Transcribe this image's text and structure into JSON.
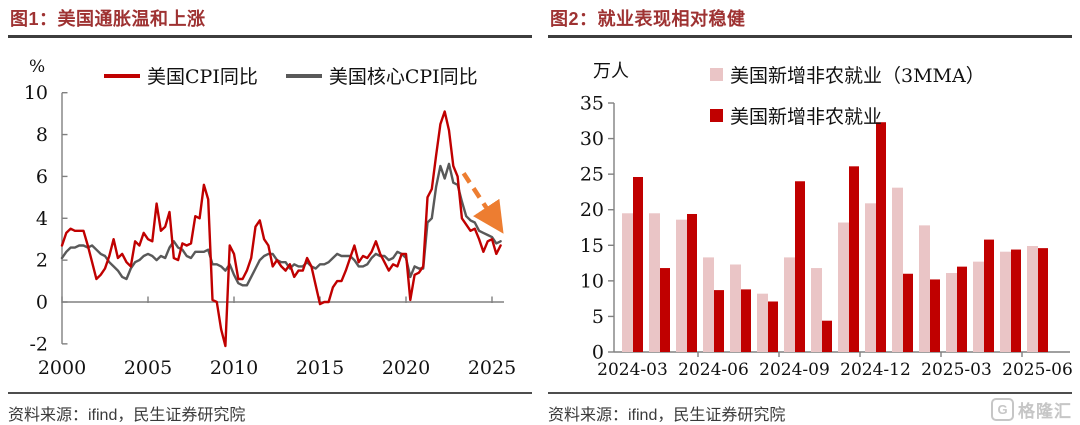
{
  "figures": [
    {
      "title": "图1：美国通胀温和上涨",
      "unit": "%",
      "source": "资料来源：ifind，民生证券研究院"
    },
    {
      "title": "图2：就业表现相对稳健",
      "unit": "万人",
      "source": "资料来源：ifind，民生证券研究院"
    }
  ],
  "watermark": {
    "icon": "G",
    "text": "格隆汇"
  },
  "colors": {
    "title_red": "#9E3232",
    "cpi_red": "#C00000",
    "core_gray": "#595959",
    "bar_pink": "#EAC5C6",
    "bar_red": "#C00000",
    "axis_gray": "#808080",
    "arrow_orange": "#ED7D31"
  },
  "chart_data": [
    {
      "type": "line",
      "title": "图1：美国通胀温和上涨",
      "ylabel": "%",
      "ylim": [
        -2,
        10
      ],
      "yticks": [
        10,
        8,
        6,
        4,
        2,
        0,
        -2
      ],
      "xticks": [
        2000,
        2005,
        2010,
        2015,
        2020,
        2025
      ],
      "xlim": [
        2000,
        2025.6
      ],
      "x_start": 2000,
      "x_step": 0.25,
      "series": [
        {
          "name": "美国CPI同比",
          "color": "#C00000",
          "values": [
            2.7,
            3.3,
            3.5,
            3.4,
            3.4,
            3.4,
            2.7,
            1.9,
            1.1,
            1.3,
            1.6,
            2.2,
            3.0,
            2.1,
            2.3,
            1.9,
            1.7,
            2.9,
            2.7,
            3.3,
            3.0,
            2.9,
            4.7,
            3.4,
            3.6,
            4.3,
            2.1,
            2.0,
            2.8,
            2.7,
            2.8,
            4.1,
            4.0,
            5.6,
            4.9,
            0.1,
            0.0,
            -1.3,
            -2.1,
            2.7,
            2.3,
            1.1,
            1.1,
            1.5,
            2.1,
            3.6,
            3.9,
            3.0,
            2.7,
            1.7,
            2.0,
            1.7,
            1.5,
            1.8,
            1.2,
            1.5,
            1.5,
            2.1,
            1.7,
            0.8,
            -0.1,
            0.0,
            0.0,
            0.7,
            1.0,
            1.0,
            1.5,
            2.1,
            2.7,
            1.9,
            2.2,
            2.1,
            2.4,
            2.9,
            2.3,
            1.9,
            1.5,
            1.8,
            1.7,
            2.3,
            2.3,
            0.1,
            1.3,
            1.4,
            1.7,
            5.0,
            5.4,
            7.0,
            8.5,
            9.1,
            8.2,
            6.5,
            6.0,
            4.0,
            3.7,
            3.4,
            3.5,
            3.0,
            2.4,
            2.9,
            3.0,
            2.3,
            2.7
          ]
        },
        {
          "name": "美国核心CPI同比",
          "color": "#595959",
          "values": [
            2.1,
            2.4,
            2.6,
            2.6,
            2.7,
            2.7,
            2.6,
            2.7,
            2.5,
            2.3,
            2.2,
            1.9,
            1.7,
            1.5,
            1.2,
            1.1,
            1.6,
            1.9,
            2.0,
            2.2,
            2.3,
            2.2,
            2.0,
            2.2,
            2.1,
            2.6,
            2.9,
            2.6,
            2.5,
            2.2,
            2.1,
            2.4,
            2.4,
            2.4,
            2.5,
            1.8,
            1.8,
            1.7,
            1.5,
            1.8,
            1.3,
            0.9,
            0.8,
            0.8,
            1.2,
            1.6,
            2.0,
            2.2,
            2.3,
            2.3,
            2.0,
            1.9,
            1.9,
            1.6,
            1.8,
            1.7,
            1.7,
            1.9,
            1.7,
            1.6,
            1.8,
            1.8,
            1.9,
            2.1,
            2.3,
            2.2,
            2.2,
            2.2,
            2.0,
            1.7,
            1.7,
            1.8,
            2.1,
            2.3,
            2.2,
            2.2,
            2.0,
            2.1,
            2.4,
            2.3,
            2.1,
            1.2,
            1.7,
            1.6,
            1.6,
            3.8,
            4.0,
            5.5,
            6.5,
            5.9,
            6.6,
            5.7,
            5.6,
            4.8,
            4.1,
            3.9,
            3.8,
            3.4,
            3.3,
            3.2,
            3.1,
            2.8,
            2.9
          ]
        }
      ],
      "annotation_arrow": {
        "style": "dashed",
        "color": "#ED7D31",
        "from": [
          2023.35,
          6.15
        ],
        "to": [
          2025.6,
          3.35
        ]
      }
    },
    {
      "type": "bar",
      "title": "图2：就业表现相对稳健",
      "ylabel": "万人",
      "ylim": [
        0,
        35
      ],
      "yticks": [
        35,
        30,
        25,
        20,
        15,
        10,
        5,
        0
      ],
      "categories": [
        "2024-03",
        "2024-04",
        "2024-05",
        "2024-06",
        "2024-07",
        "2024-08",
        "2024-09",
        "2024-10",
        "2024-11",
        "2024-12",
        "2025-01",
        "2025-02",
        "2025-03",
        "2025-04",
        "2025-05",
        "2025-06"
      ],
      "x_tick_indices": [
        0,
        3,
        6,
        9,
        12,
        15
      ],
      "series": [
        {
          "name": "美国新增非农就业（3MMA）",
          "color": "#EAC5C6",
          "values": [
            19.5,
            19.5,
            18.6,
            13.3,
            12.3,
            8.2,
            13.3,
            11.8,
            18.2,
            20.9,
            23.1,
            17.8,
            11.1,
            12.7,
            14.1,
            14.9
          ]
        },
        {
          "name": "美国新增非农就业",
          "color": "#C00000",
          "values": [
            24.6,
            11.8,
            19.4,
            8.7,
            8.8,
            7.1,
            24.0,
            4.4,
            26.1,
            32.3,
            11.0,
            10.2,
            12.0,
            15.8,
            14.4,
            14.6
          ]
        }
      ]
    }
  ]
}
